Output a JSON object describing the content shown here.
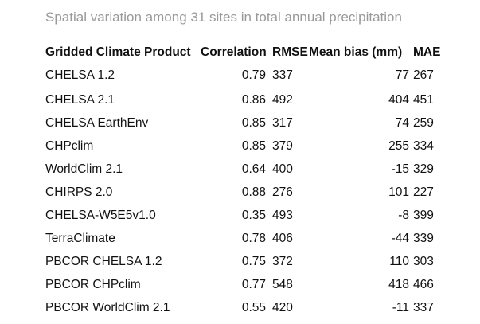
{
  "caption": "Spatial variation among 31 sites in total annual precipitation",
  "table": {
    "headers": [
      "Gridded Climate Product",
      "Correlation",
      "RMSE",
      "Mean bias (mm)",
      "MAE"
    ],
    "rows": [
      [
        "CHELSA 1.2",
        "0.79",
        "337",
        "77",
        "267"
      ],
      [
        "CHELSA 2.1",
        "0.86",
        "492",
        "404",
        "451"
      ],
      [
        "CHELSA EarthEnv",
        "0.85",
        "317",
        "74",
        "259"
      ],
      [
        "CHPclim",
        "0.85",
        "379",
        "255",
        "334"
      ],
      [
        "WorldClim 2.1",
        "0.64",
        "400",
        "-15",
        "329"
      ],
      [
        "CHIRPS 2.0",
        "0.88",
        "276",
        "101",
        "227"
      ],
      [
        "CHELSA-W5E5v1.0",
        "0.35",
        "493",
        "-8",
        "399"
      ],
      [
        "TerraClimate",
        "0.78",
        "406",
        "-44",
        "339"
      ],
      [
        "PBCOR CHELSA 1.2",
        "0.75",
        "372",
        "110",
        "303"
      ],
      [
        "PBCOR CHPclim",
        "0.77",
        "548",
        "418",
        "466"
      ],
      [
        "PBCOR WorldClim 2.1",
        "0.55",
        "420",
        "-11",
        "337"
      ]
    ]
  }
}
